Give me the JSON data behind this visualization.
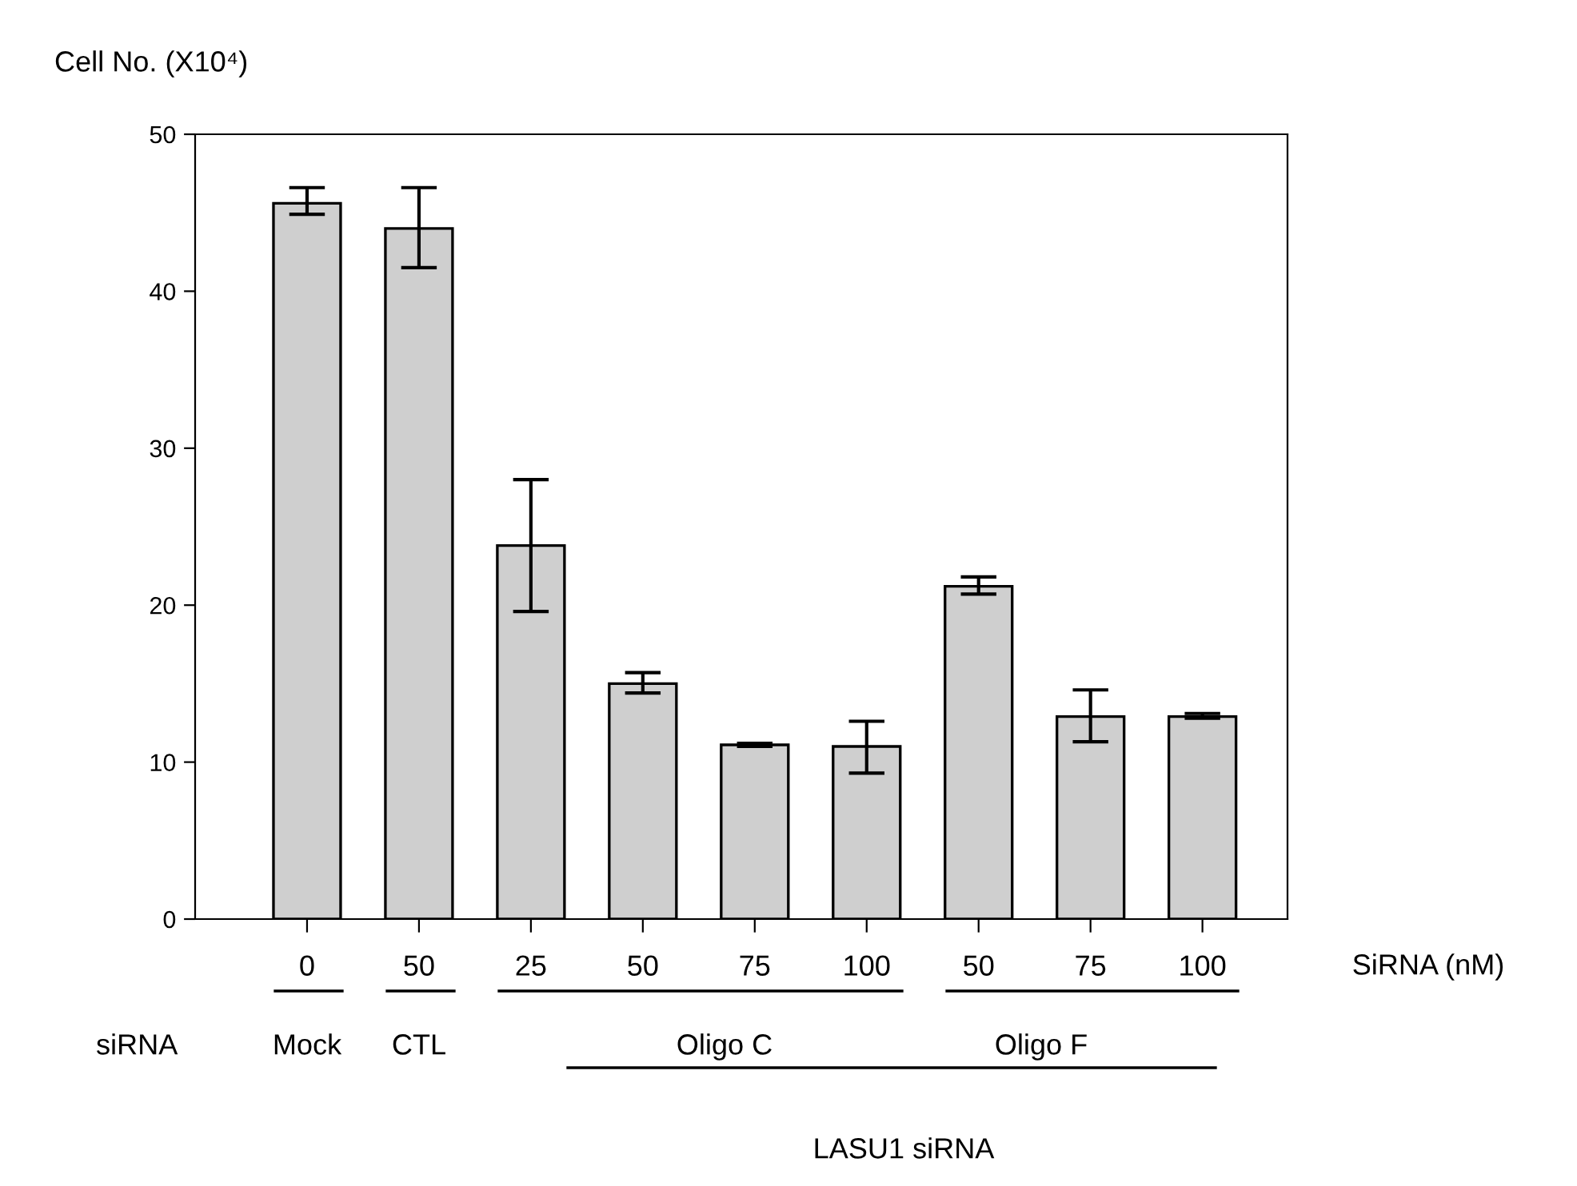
{
  "chart_data": {
    "type": "bar",
    "ylabel": "Cell No. (X10⁴)",
    "categories": [
      "0",
      "50",
      "25",
      "50",
      "75",
      "100",
      "50",
      "75",
      "100"
    ],
    "values": [
      45.6,
      44.0,
      23.8,
      15.0,
      11.1,
      11.0,
      21.2,
      12.9,
      12.9
    ],
    "errors": [
      [
        44.9,
        46.6
      ],
      [
        41.5,
        46.6
      ],
      [
        19.6,
        28.0
      ],
      [
        14.4,
        15.7
      ],
      [
        11.0,
        11.2
      ],
      [
        9.3,
        12.6
      ],
      [
        20.7,
        21.8
      ],
      [
        11.3,
        14.6
      ],
      [
        12.8,
        13.1
      ]
    ],
    "color": "#cfcfcf",
    "ylim": [
      0,
      50
    ],
    "yticks": [
      0,
      10,
      20,
      30,
      40,
      50
    ],
    "grid": false,
    "legend": false,
    "annotations": [
      "SiRNA (nM)",
      "siRNA",
      "Mock",
      "CTL",
      "Oligo C",
      "Oligo F",
      "LASU1 siRNA"
    ]
  }
}
